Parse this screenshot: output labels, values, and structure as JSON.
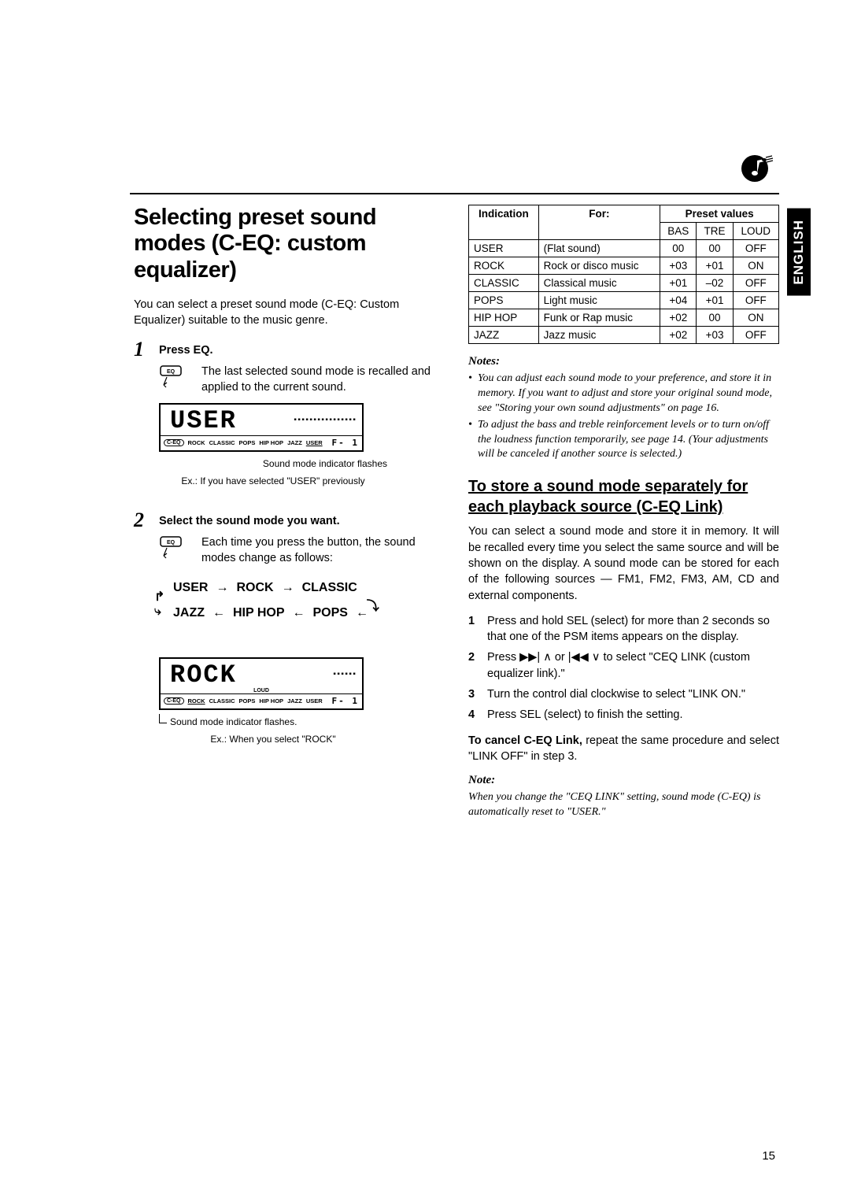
{
  "side_tab": "ENGLISH",
  "page_number": "15",
  "heading": "Selecting preset sound modes (C-EQ: custom equalizer)",
  "intro": "You can select a preset sound mode (C-EQ: Custom Equalizer) suitable to the music genre.",
  "step1": {
    "num": "1",
    "title": "Press EQ.",
    "body": "The last selected sound mode is recalled and applied to the current sound.",
    "lcd_text": "USER",
    "lcd_modes": [
      "ROCK",
      "CLASSIC",
      "POPS",
      "HIP HOP",
      "JAZZ",
      "USER"
    ],
    "lcd_underline": "USER",
    "caption1": "Sound mode indicator flashes",
    "caption2": "Ex.: If you have selected \"USER\" previously"
  },
  "step2": {
    "num": "2",
    "title": "Select the sound mode you want.",
    "body": "Each time you press the button, the sound modes change as follows:",
    "cycle_top": [
      "USER",
      "ROCK",
      "CLASSIC"
    ],
    "cycle_bottom": [
      "JAZZ",
      "HIP HOP",
      "POPS"
    ],
    "lcd_text": "ROCK",
    "lcd_loud": "LOUD",
    "lcd_underline": "ROCK",
    "caption1": "Sound mode indicator flashes.",
    "caption2": "Ex.: When you select \"ROCK\""
  },
  "table": {
    "headers": {
      "indication": "Indication",
      "for": "For:",
      "preset": "Preset values",
      "bas": "BAS",
      "tre": "TRE",
      "loud": "LOUD"
    },
    "rows": [
      {
        "ind": "USER",
        "for": "(Flat sound)",
        "bas": "00",
        "tre": "00",
        "loud": "OFF"
      },
      {
        "ind": "ROCK",
        "for": "Rock or disco music",
        "bas": "+03",
        "tre": "+01",
        "loud": "ON"
      },
      {
        "ind": "CLASSIC",
        "for": "Classical music",
        "bas": "+01",
        "tre": "–02",
        "loud": "OFF"
      },
      {
        "ind": "POPS",
        "for": "Light music",
        "bas": "+04",
        "tre": "+01",
        "loud": "OFF"
      },
      {
        "ind": "HIP HOP",
        "for": "Funk or Rap music",
        "bas": "+02",
        "tre": "00",
        "loud": "ON"
      },
      {
        "ind": "JAZZ",
        "for": "Jazz music",
        "bas": "+02",
        "tre": "+03",
        "loud": "OFF"
      }
    ]
  },
  "notes_heading": "Notes:",
  "notes": [
    "You can adjust each sound mode to your preference, and store it in memory.\nIf you want to adjust and store your original sound mode, see \"Storing your own sound adjustments\" on page 16.",
    "To adjust the bass and treble reinforcement levels or to turn on/off the loudness function temporarily, see page 14. (Your adjustments will be canceled if another source is selected.)"
  ],
  "section2": {
    "heading": "To store a sound mode separately for each playback source (C-EQ Link)",
    "body": "You can select a sound mode and store it in memory. It will be recalled every time you select the same source and will be shown on the display. A sound mode can be stored for each of the following sources — FM1, FM2, FM3, AM, CD and external components.",
    "steps": [
      "Press and hold SEL (select) for more than 2 seconds so that one of the PSM items appears on the display.",
      "Press ▶▶| ∧ or |◀◀ ∨ to select \"CEQ LINK (custom equalizer link).\"",
      "Turn the control dial clockwise to select \"LINK ON.\"",
      "Press SEL (select) to finish the setting."
    ],
    "cancel_bold": "To cancel C-EQ Link,",
    "cancel_rest": " repeat the same procedure and select \"LINK OFF\" in step 3.",
    "note_h": "Note:",
    "note": "When you change the \"CEQ LINK\" setting, sound mode (C-EQ) is automatically reset to \"USER.\""
  }
}
